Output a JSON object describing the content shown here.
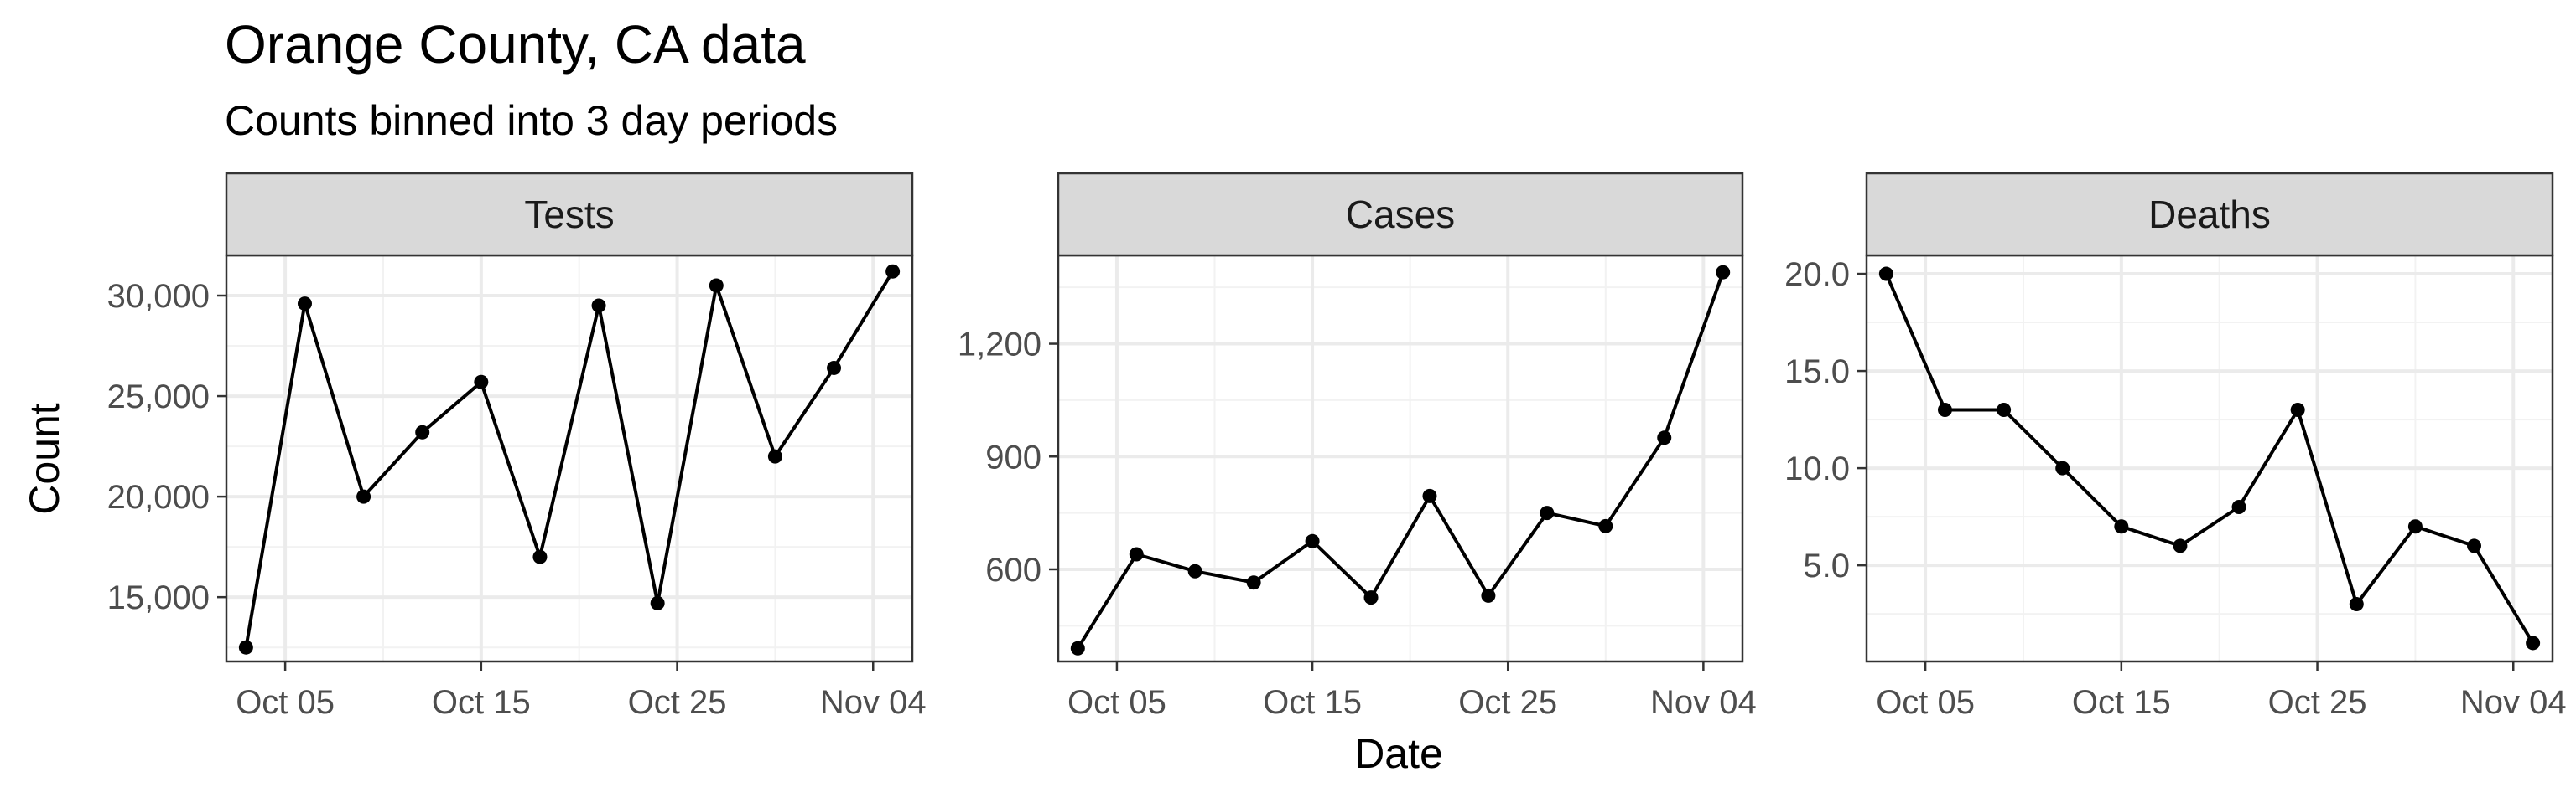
{
  "chart_data": {
    "type": "line",
    "title": "Orange County, CA data",
    "subtitle": "Counts binned into 3 day periods",
    "xlabel": "Date",
    "ylabel": "Count",
    "x": [
      "2020-10-03",
      "2020-10-06",
      "2020-10-09",
      "2020-10-12",
      "2020-10-15",
      "2020-10-18",
      "2020-10-21",
      "2020-10-24",
      "2020-10-27",
      "2020-10-30",
      "2020-11-02",
      "2020-11-05"
    ],
    "xlim": [
      "2020-10-02",
      "2020-11-06"
    ],
    "x_ticks": [
      "2020-10-05",
      "2020-10-15",
      "2020-10-25",
      "2020-11-04"
    ],
    "x_tick_labels": [
      "Oct 05",
      "Oct 15",
      "Oct 25",
      "Nov 04"
    ],
    "grid": true,
    "theme": "bw",
    "line_color": "#000000",
    "strip_fill": "#d9d9d9",
    "facets": [
      {
        "strip": "Tests",
        "values": [
          12500,
          29600,
          20000,
          23200,
          25700,
          17000,
          29500,
          14700,
          30500,
          22000,
          26400,
          31200
        ],
        "ylim": [
          11800,
          32000
        ],
        "y_ticks": [
          15000,
          20000,
          25000,
          30000
        ],
        "y_tick_labels": [
          "15,000",
          "20,000",
          "25,000",
          "30,000"
        ]
      },
      {
        "strip": "Cases",
        "values": [
          390,
          640,
          595,
          565,
          675,
          525,
          795,
          530,
          750,
          715,
          950,
          1390
        ],
        "ylim": [
          355,
          1435
        ],
        "y_ticks": [
          600,
          900,
          1200
        ],
        "y_tick_labels": [
          "600",
          "900",
          "1,200"
        ]
      },
      {
        "strip": "Deaths",
        "values": [
          20,
          13,
          13,
          10,
          7,
          6,
          8,
          13,
          3,
          7,
          6,
          1
        ],
        "ylim": [
          0.05,
          20.95
        ],
        "y_ticks": [
          5,
          10,
          15,
          20
        ],
        "y_tick_labels": [
          "5.0",
          "10.0",
          "15.0",
          "20.0"
        ]
      }
    ]
  }
}
